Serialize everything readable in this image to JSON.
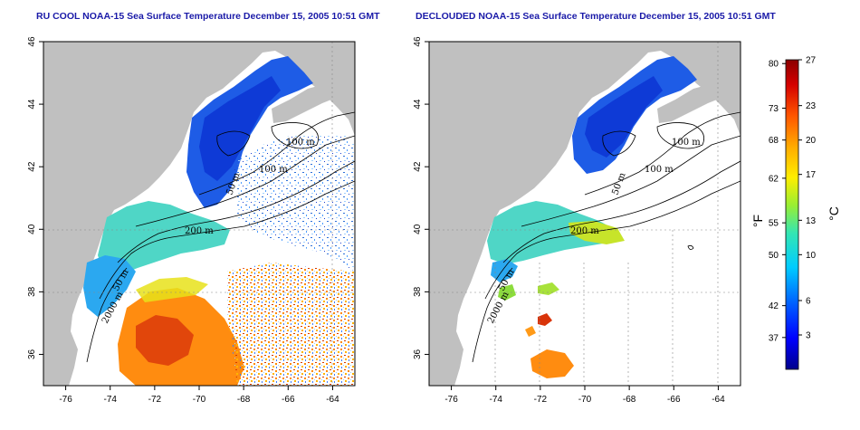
{
  "titles": {
    "left": "RU COOL NOAA-15 Sea Surface Temperature December 15, 2005 10:51 GMT",
    "right": "DECLOUDED NOAA-15 Sea Surface Temperature December 15, 2005 10:51 GMT"
  },
  "map": {
    "lon_range": [
      -77,
      -63
    ],
    "lat_range": [
      35,
      46
    ],
    "lon_ticks": [
      "-76",
      "-74",
      "-72",
      "-70",
      "-68",
      "-66",
      "-64"
    ],
    "lat_ticks": [
      "36",
      "38",
      "40",
      "42",
      "44",
      "46"
    ],
    "land_color": "#c0c0c0",
    "ocean_blank_color": "#ffffff",
    "contour_labels_left": [
      "100 m",
      "100 m",
      "200 m",
      "50 m",
      "2000 m",
      "50 m"
    ],
    "contour_labels_right": [
      "100 m",
      "100 m",
      "200 m",
      "50 m",
      "2000 m",
      "50 m"
    ]
  },
  "colorbar": {
    "fahrenheit_ticks": [
      "80",
      "73",
      "68",
      "62",
      "55",
      "50",
      "42",
      "37"
    ],
    "celsius_ticks": [
      "27",
      "23",
      "20",
      "17",
      "13",
      "10",
      "6",
      "3"
    ],
    "fahrenheit_unit": "°F",
    "celsius_unit": "°C",
    "range_c": [
      0,
      27
    ],
    "colors": [
      "#00008b",
      "#0000ff",
      "#0066ff",
      "#00ccff",
      "#33e6b3",
      "#99ee33",
      "#ffee00",
      "#ffaa00",
      "#ff5500",
      "#d40000",
      "#8b0000"
    ]
  }
}
